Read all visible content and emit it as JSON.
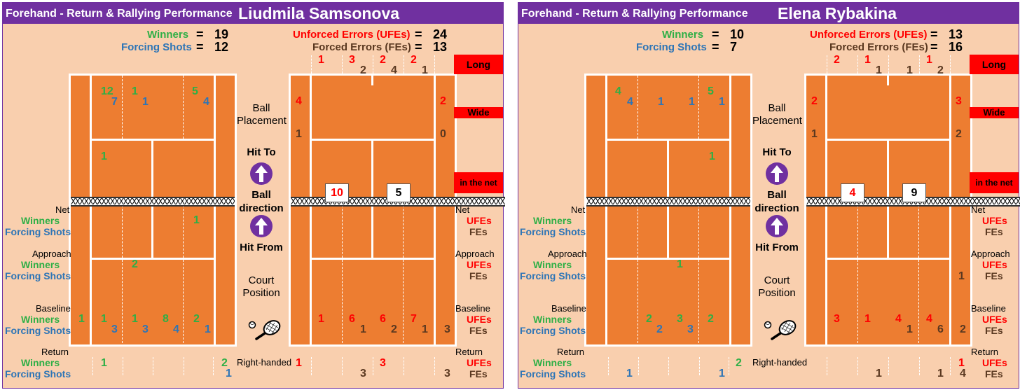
{
  "left": {
    "subtitle": "Forehand - Return & Rallying Performance",
    "player": "Liudmila Samsonova",
    "winners_label": "Winners",
    "winners_value": "19",
    "forcing_label": "Forcing Shots",
    "forcing_value": "12",
    "ufe_label": "Unforced Errors (UFEs)",
    "ufe_value": "24",
    "fe_label": "Forced Errors (FEs)",
    "fe_value": "13",
    "eq": "=",
    "mid": {
      "ball_placement": "Ball\nPlacement",
      "hit_to": "Hit To",
      "ball_direction": "Ball\ndirection",
      "hit_from": "Hit From",
      "court_position": "Court\nPosition",
      "right_handed": "Right-handed"
    },
    "side_labels": {
      "net": "Net",
      "approach": "Approach",
      "baseline": "Baseline",
      "return": "Return",
      "winners": "Winners",
      "forcing": "Forcing Shots",
      "ufes": "UFEs",
      "fes": "FEs"
    },
    "boxes": {
      "long": "Long",
      "wide": "Wide",
      "net": "in the net"
    },
    "net_boxes": [
      "10",
      "5"
    ],
    "hit_from_winners_top": [
      "12",
      "1",
      "5"
    ],
    "hit_from_forcing_top": [
      "7",
      "1",
      "4"
    ],
    "hit_from_winners_mid": "1",
    "net_row_winner": "1",
    "approach_winner": "2",
    "baseline_winners": [
      "1",
      "1",
      "1",
      "8",
      "2"
    ],
    "baseline_forcing": [
      "3",
      "3",
      "4",
      "1"
    ],
    "return_winners": [
      "1",
      "2"
    ],
    "return_forcing": "1",
    "top_ufe": [
      "1",
      "3",
      "2",
      "2"
    ],
    "top_fe": [
      "2",
      "4",
      "1"
    ],
    "wide_left": [
      "4",
      "1"
    ],
    "wide_right": [
      "2",
      "0"
    ],
    "baseline_ufe": [
      "1",
      "6",
      "6",
      "7"
    ],
    "baseline_fe": [
      "1",
      "2",
      "1",
      "3"
    ],
    "return_ufe": [
      "1",
      "3"
    ],
    "return_fe": [
      "3",
      "3"
    ]
  },
  "right": {
    "subtitle": "Forehand - Return & Rallying Performance",
    "player": "Elena Rybakina",
    "winners_label": "Winners",
    "winners_value": "10",
    "forcing_label": "Forcing Shots",
    "forcing_value": "7",
    "ufe_label": "Unforced Errors (UFEs)",
    "ufe_value": "13",
    "fe_label": "Forced Errors (FEs)",
    "fe_value": "16",
    "eq": "=",
    "mid": {
      "ball_placement": "Ball\nPlacement",
      "hit_to": "Hit To",
      "ball_direction": "Ball\ndirection",
      "hit_from": "Hit From",
      "court_position": "Court\nPosition",
      "right_handed": "Right-handed"
    },
    "side_labels": {
      "net": "Net",
      "approach": "Approach",
      "baseline": "Baseline",
      "return": "Return",
      "winners": "Winners",
      "forcing": "Forcing Shots",
      "ufes": "UFEs",
      "fes": "FEs"
    },
    "boxes": {
      "long": "Long",
      "wide": "Wide",
      "net": "in the net"
    },
    "net_boxes": [
      "4",
      "9"
    ],
    "hit_from_winners_top": [
      "4",
      "5"
    ],
    "hit_from_forcing_top": [
      "4",
      "1",
      "1",
      "1"
    ],
    "hit_from_winners_mid": "1",
    "approach_winner": "1",
    "baseline_winners": [
      "2",
      "3",
      "2"
    ],
    "baseline_forcing": [
      "2",
      "3"
    ],
    "return_winners": [
      "2"
    ],
    "return_forcing": [
      "1",
      "1"
    ],
    "top_ufe": [
      "2",
      "1",
      "1"
    ],
    "top_fe": [
      "1",
      "1",
      "2"
    ],
    "wide_left": [
      "2",
      "1"
    ],
    "wide_right": [
      "3",
      "2"
    ],
    "approach_fe": "1",
    "baseline_ufe": [
      "3",
      "1",
      "4",
      "4"
    ],
    "baseline_fe": [
      "1",
      "6",
      "2"
    ],
    "return_ufe": [
      "1"
    ],
    "return_fe": [
      "1",
      "1",
      "4"
    ]
  }
}
